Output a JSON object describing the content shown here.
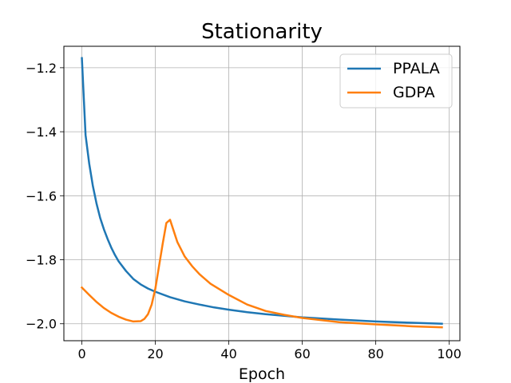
{
  "chart_data": {
    "type": "line",
    "title": "Stationarity",
    "xlabel": "Epoch",
    "ylabel": "",
    "xlim": [
      -4.9,
      102.9
    ],
    "ylim": [
      -2.053,
      -1.133
    ],
    "xticks": [
      0,
      20,
      40,
      60,
      80,
      100
    ],
    "xtick_labels": [
      "0",
      "20",
      "40",
      "60",
      "80",
      "100"
    ],
    "yticks": [
      -1.2,
      -1.4,
      -1.6,
      -1.8,
      -2.0
    ],
    "ytick_labels": [
      "−1.2",
      "−1.4",
      "−1.6",
      "−1.8",
      "−2.0"
    ],
    "grid": true,
    "legend_position": "top-right",
    "series": [
      {
        "name": "PPALA",
        "color": "#1f77b4",
        "x": [
          0,
          1,
          2,
          3,
          4,
          5,
          6,
          7,
          8,
          9,
          10,
          12,
          14,
          16,
          18,
          20,
          24,
          28,
          32,
          36,
          40,
          45,
          50,
          55,
          60,
          70,
          80,
          90,
          98
        ],
        "y": [
          -1.17,
          -1.41,
          -1.5,
          -1.57,
          -1.625,
          -1.67,
          -1.705,
          -1.735,
          -1.762,
          -1.785,
          -1.805,
          -1.835,
          -1.86,
          -1.877,
          -1.89,
          -1.9,
          -1.917,
          -1.93,
          -1.94,
          -1.949,
          -1.956,
          -1.964,
          -1.97,
          -1.975,
          -1.98,
          -1.987,
          -1.993,
          -1.997,
          -2.0
        ]
      },
      {
        "name": "GDPA",
        "color": "#ff7f0e",
        "x": [
          0,
          2,
          4,
          6,
          8,
          10,
          12,
          14,
          16,
          17,
          18,
          19,
          20,
          21,
          22,
          23,
          24,
          25,
          26,
          28,
          30,
          32,
          35,
          40,
          45,
          50,
          55,
          60,
          70,
          80,
          90,
          98
        ],
        "y": [
          -1.887,
          -1.91,
          -1.932,
          -1.951,
          -1.966,
          -1.978,
          -1.987,
          -1.993,
          -1.992,
          -1.985,
          -1.97,
          -1.94,
          -1.89,
          -1.82,
          -1.75,
          -1.685,
          -1.675,
          -1.71,
          -1.745,
          -1.79,
          -1.82,
          -1.845,
          -1.875,
          -1.91,
          -1.94,
          -1.96,
          -1.972,
          -1.982,
          -1.995,
          -2.002,
          -2.008,
          -2.011
        ]
      }
    ]
  }
}
